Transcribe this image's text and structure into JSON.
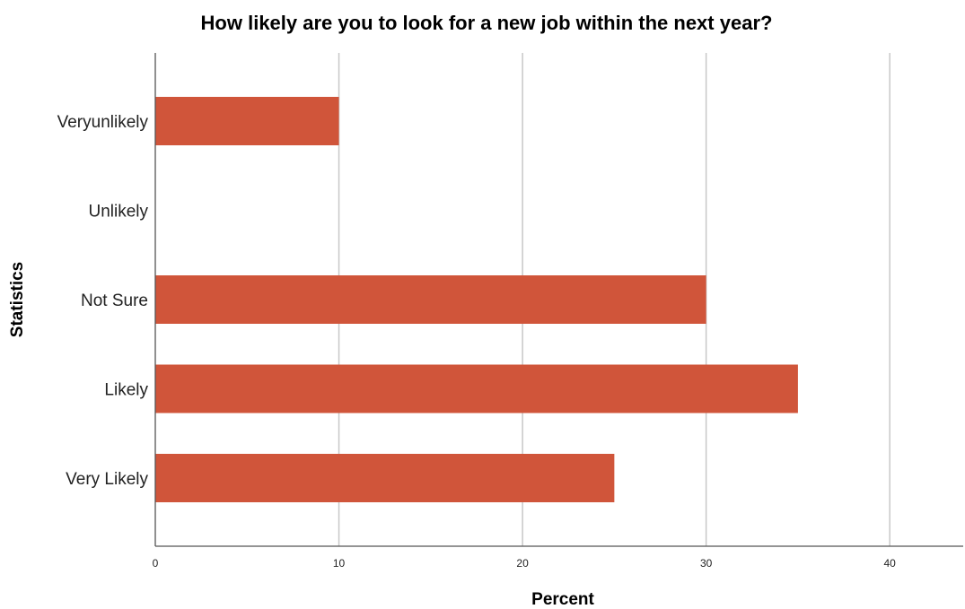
{
  "chart_data": {
    "type": "bar",
    "orientation": "horizontal",
    "title": "How likely are you to look for a new job within the next year?",
    "xlabel": "Percent",
    "ylabel": "Statistics",
    "categories": [
      "Veryunlikely",
      "Unlikely",
      "Not Sure",
      "Likely",
      "Very Likely"
    ],
    "values": [
      10,
      0,
      30,
      35,
      25
    ],
    "xlim": [
      0,
      44
    ],
    "xticks": [
      0,
      10,
      20,
      30,
      40
    ],
    "grid": true,
    "bar_color": "#d0553a"
  }
}
